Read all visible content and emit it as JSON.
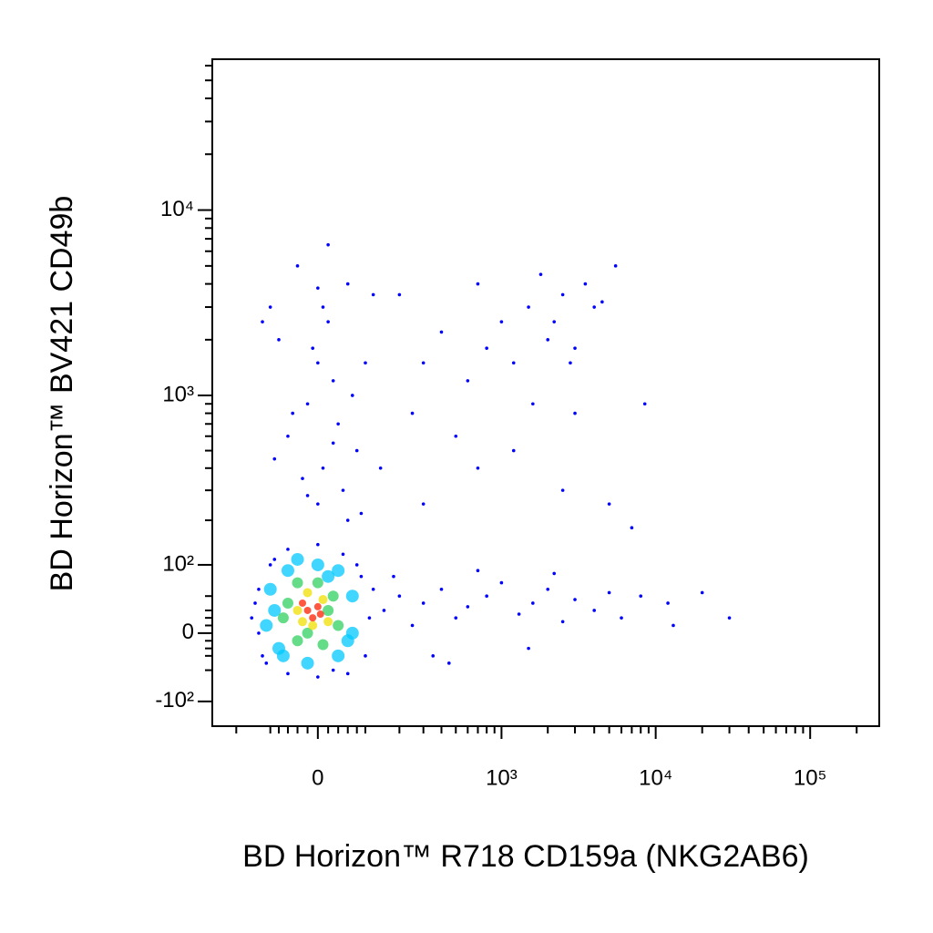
{
  "chart_data": {
    "type": "scatter",
    "scale": "biexponential",
    "x_label": "BD Horizon™ R718  CD159a (NKG2AB6)",
    "y_label": "BD Horizon™ BV421 CD49b",
    "xlim": [
      -300,
      280000
    ],
    "ylim": [
      -150,
      65000
    ],
    "xticks": [
      {
        "value": 0,
        "label": "0"
      },
      {
        "value": 1000,
        "label": "10³"
      },
      {
        "value": 10000,
        "label": "10⁴"
      },
      {
        "value": 100000,
        "label": "10⁵"
      }
    ],
    "yticks": [
      {
        "value": -100,
        "label": "-10²"
      },
      {
        "value": 0,
        "label": "0"
      },
      {
        "value": 100,
        "label": "10²"
      },
      {
        "value": 1000,
        "label": "10³"
      },
      {
        "value": 10000,
        "label": "10⁴"
      }
    ],
    "xminorticks": [
      -200,
      -100,
      -80,
      -60,
      -40,
      -20,
      20,
      40,
      60,
      80,
      100,
      200,
      300,
      400,
      500,
      600,
      700,
      800,
      900,
      2000,
      3000,
      4000,
      5000,
      6000,
      7000,
      8000,
      9000,
      20000,
      30000,
      40000,
      50000,
      60000,
      70000,
      80000,
      90000,
      200000
    ],
    "yminorticks": [
      -50,
      -30,
      -20,
      -10,
      10,
      20,
      30,
      50,
      200,
      300,
      400,
      500,
      600,
      700,
      800,
      900,
      2000,
      3000,
      4000,
      5000,
      6000,
      7000,
      8000,
      9000,
      20000,
      30000,
      40000,
      50000,
      60000
    ],
    "series": [
      {
        "color": "#0000ff",
        "x": [
          -40,
          10,
          20,
          -80,
          60,
          0,
          30,
          -20,
          40,
          -60,
          80,
          10,
          -30,
          50,
          0,
          90,
          -90,
          -120,
          120,
          20,
          -10,
          70,
          -50,
          100,
          30,
          -20,
          140,
          60,
          -100,
          0,
          1000,
          1500,
          2000,
          2500,
          3000,
          3500,
          4500,
          5500,
          1200,
          800,
          700,
          1800,
          2200,
          2800,
          4000,
          600,
          400,
          300,
          250,
          200,
          1600,
          3000,
          500,
          700,
          1200,
          2500,
          5000,
          8500,
          7000,
          300,
          150,
          200,
          250,
          300,
          400,
          500,
          600,
          800,
          1000,
          1300,
          1600,
          2000,
          2500,
          3000,
          4000,
          5000,
          6000,
          8000,
          12000,
          13000,
          20000,
          30000,
          350,
          1500,
          180,
          700,
          450,
          2200,
          -150,
          -130,
          -120,
          -100,
          -60,
          0,
          50,
          90,
          110,
          100,
          60,
          0,
          -60,
          -110,
          -140,
          80,
          -90,
          30,
          120,
          -130
        ],
        "y": [
          5000,
          3000,
          2500,
          2000,
          4000,
          1500,
          1200,
          900,
          700,
          600,
          500,
          400,
          350,
          300,
          250,
          220,
          450,
          2500,
          3500,
          6500,
          1800,
          1000,
          800,
          1500,
          550,
          280,
          400,
          200,
          3000,
          3800,
          2500,
          3000,
          2000,
          3500,
          1800,
          4000,
          3200,
          5000,
          1500,
          1800,
          4000,
          4500,
          2500,
          1500,
          3000,
          1200,
          2200,
          1500,
          800,
          3500,
          900,
          800,
          600,
          400,
          500,
          300,
          250,
          900,
          180,
          250,
          30,
          50,
          10,
          40,
          60,
          20,
          35,
          50,
          70,
          25,
          40,
          60,
          15,
          45,
          30,
          55,
          20,
          50,
          40,
          10,
          55,
          20,
          -30,
          -20,
          80,
          90,
          -40,
          85,
          20,
          60,
          -30,
          100,
          130,
          140,
          120,
          80,
          20,
          -30,
          -55,
          -60,
          -55,
          -40,
          40,
          100,
          110,
          -50,
          60,
          0
        ]
      },
      {
        "color": "#00c8ff",
        "x": [
          -100,
          -80,
          -60,
          0,
          40,
          70,
          70,
          40,
          -20,
          -70,
          -90,
          20,
          -40,
          60,
          -110
        ],
        "y": [
          60,
          -20,
          90,
          100,
          90,
          50,
          0,
          -30,
          -40,
          -30,
          30,
          80,
          110,
          -10,
          10
        ]
      },
      {
        "color": "#30d060",
        "x": [
          -60,
          -40,
          0,
          30,
          40,
          10,
          -40,
          -70,
          20,
          -20
        ],
        "y": [
          40,
          70,
          70,
          50,
          10,
          -15,
          -10,
          20,
          30,
          0
        ]
      },
      {
        "color": "#f0e000",
        "x": [
          -40,
          -20,
          10,
          20,
          -10,
          -30
        ],
        "y": [
          30,
          55,
          45,
          15,
          10,
          15
        ]
      },
      {
        "color": "#ff2000",
        "x": [
          -20,
          0,
          -10,
          -30,
          5
        ],
        "y": [
          30,
          35,
          20,
          40,
          25
        ]
      }
    ]
  }
}
